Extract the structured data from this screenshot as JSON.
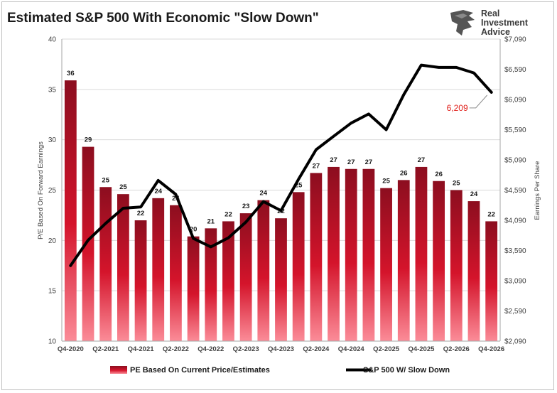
{
  "brand": {
    "logo_lines": [
      "Real",
      "Investment",
      "Advice"
    ]
  },
  "chart_data": {
    "type": "bar",
    "title": "Estimated S&P 500 With Economic \"Slow Down\"",
    "ylabel": "P/E Based On Forward Earnings",
    "y2label": "Earnings Per Share",
    "ylim": [
      10,
      40
    ],
    "y_ticks": [
      10,
      15,
      20,
      25,
      30,
      35,
      40
    ],
    "y2lim": [
      2090,
      7090
    ],
    "y2_ticks": [
      "$2,090",
      "$2,590",
      "$3,090",
      "$3,590",
      "$4,090",
      "$4,590",
      "$5,090",
      "$5,590",
      "$6,090",
      "$6,590",
      "$7,090"
    ],
    "y2_values": [
      2090,
      2590,
      3090,
      3590,
      4090,
      4590,
      5090,
      5590,
      6090,
      6590,
      7090
    ],
    "categories": [
      "Q4-2020",
      "Q1-2021",
      "Q2-2021",
      "Q3-2021",
      "Q4-2021",
      "Q1-2022",
      "Q2-2022",
      "Q3-2022",
      "Q4-2022",
      "Q1-2023",
      "Q2-2023",
      "Q3-2023",
      "Q4-2023",
      "Q1-2024",
      "Q2-2024",
      "Q3-2024",
      "Q4-2024",
      "Q1-2025",
      "Q2-2025",
      "Q3-2025",
      "Q4-2025",
      "Q1-2026",
      "Q2-2026",
      "Q3-2026",
      "Q4-2026"
    ],
    "x_tick_labels": [
      "Q4-2020",
      "",
      "Q2-2021",
      "",
      "Q4-2021",
      "",
      "Q2-2022",
      "",
      "Q4-2022",
      "",
      "Q2-2023",
      "",
      "Q4-2023",
      "",
      "Q2-2024",
      "",
      "Q4-2024",
      "",
      "Q2-2025",
      "",
      "Q4-2025",
      "",
      "Q2-2026",
      "",
      "Q4-2026"
    ],
    "series": [
      {
        "name": "PE Based On Current Price/Estimates",
        "type": "bar",
        "axis": "left",
        "values": [
          35.9,
          29.3,
          25.3,
          24.6,
          22.0,
          24.2,
          23.5,
          20.4,
          21.2,
          21.9,
          22.7,
          24.0,
          22.2,
          24.8,
          26.7,
          27.3,
          27.1,
          27.1,
          25.2,
          26.0,
          27.3,
          25.9,
          25.0,
          23.9,
          21.9
        ],
        "labels": [
          "36",
          "29",
          "25",
          "25",
          "22",
          "24",
          "24",
          "20",
          "21",
          "22",
          "23",
          "24",
          "22",
          "25",
          "27",
          "27",
          "27",
          "27",
          "25",
          "26",
          "27",
          "26",
          "25",
          "24",
          "22"
        ]
      },
      {
        "name": "S&P 500 W/ Slow Down",
        "type": "line",
        "axis": "right",
        "values": [
          3340,
          3760,
          4040,
          4290,
          4310,
          4750,
          4520,
          3790,
          3650,
          3800,
          4060,
          4400,
          4250,
          4770,
          5260,
          5480,
          5700,
          5850,
          5590,
          6170,
          6660,
          6620,
          6620,
          6530,
          6209
        ]
      }
    ],
    "annotation": {
      "text": "6,209",
      "value": 6209,
      "category": "Q4-2026"
    },
    "colors": {
      "bar_top": "#8c0e1f",
      "bar_mid": "#d4142b",
      "bar_bottom": "#fb8c98",
      "line": "#000000",
      "annotation": "#e0201b",
      "grid": "#d9d9d9"
    },
    "grid": true,
    "legend_position": "bottom"
  }
}
